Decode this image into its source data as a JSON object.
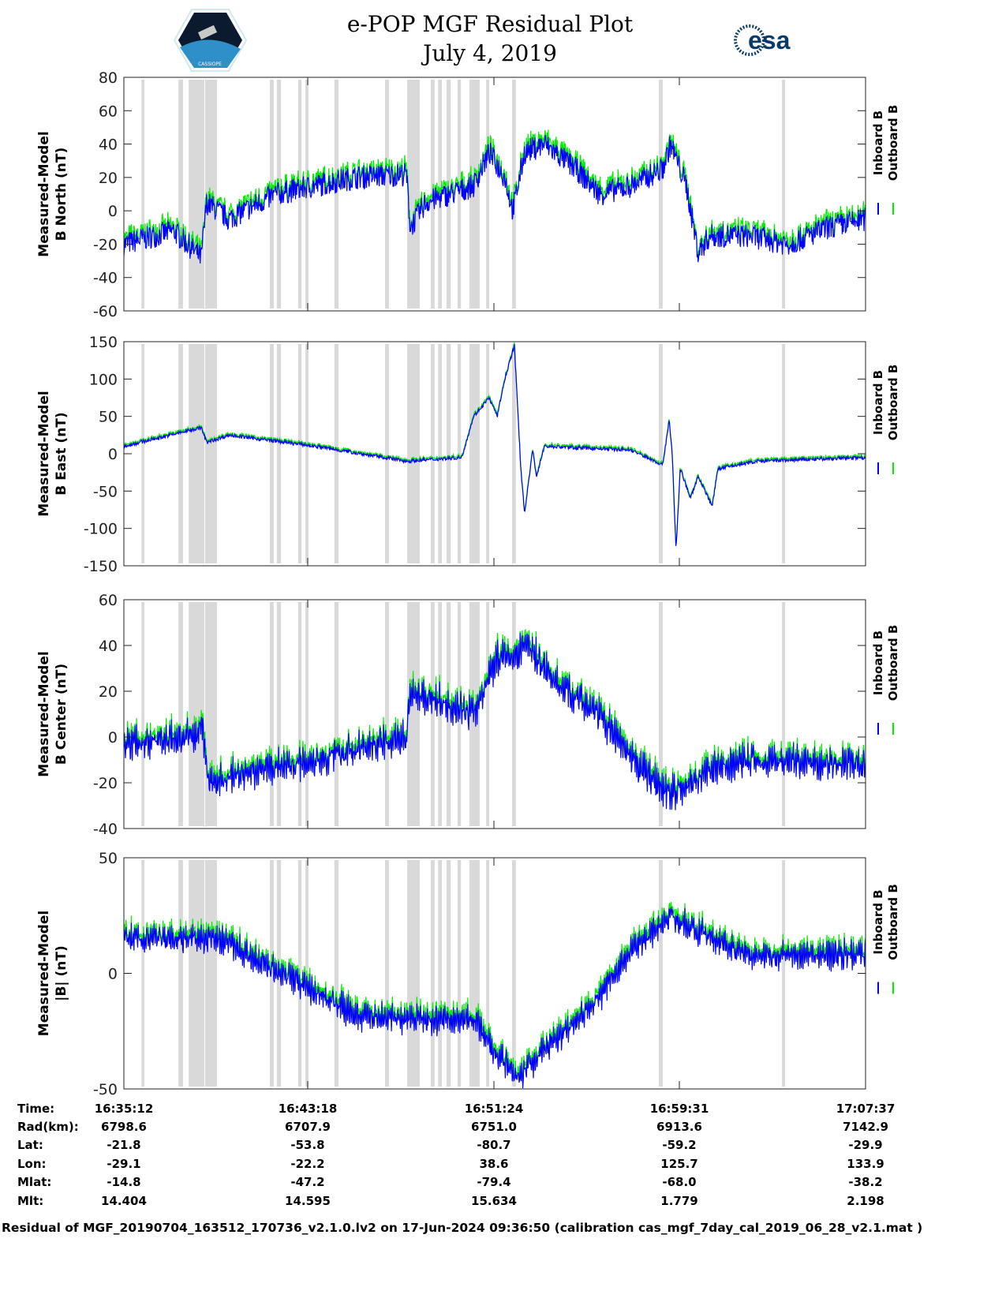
{
  "header": {
    "title": "e-POP MGF Residual Plot",
    "date": "July 4, 2019",
    "left_logo": "CASSIOPE",
    "right_logo": "esa"
  },
  "footer": "Residual of MGF_20190704_163512_170736_v2.1.0.lv2 on 17-Jun-2024 09:36:50 (calibration cas_mgf_7day_cal_2019_06_28_v2.1.mat )",
  "colors": {
    "inboard": "#0000ff",
    "outboard": "#00ee00",
    "gap_band": "#d9d9d9"
  },
  "ephemeris": {
    "rows": [
      {
        "label": "Time:",
        "values": [
          "16:35:12",
          "16:43:18",
          "16:51:24",
          "16:59:31",
          "17:07:37"
        ]
      },
      {
        "label": "Rad(km):",
        "values": [
          "6798.6",
          "6707.9",
          "6751.0",
          "6913.6",
          "7142.9"
        ]
      },
      {
        "label": "Lat:",
        "values": [
          "-21.8",
          "-53.8",
          "-80.7",
          "-59.2",
          "-29.9"
        ]
      },
      {
        "label": "Lon:",
        "values": [
          "-29.1",
          "-22.2",
          "38.6",
          "125.7",
          "133.9"
        ]
      },
      {
        "label": "Mlat:",
        "values": [
          "-14.8",
          "-47.2",
          "-79.4",
          "-68.0",
          "-38.2"
        ]
      },
      {
        "label": "Mlt:",
        "values": [
          "14.404",
          "14.595",
          "15.634",
          "1.779",
          "2.198"
        ]
      }
    ]
  },
  "chart_data": {
    "type": "line",
    "x_unit": "seconds since 16:35:12",
    "xlim": [
      0,
      1945
    ],
    "gap_bands_s": [
      [
        46,
        54
      ],
      [
        143,
        155
      ],
      [
        170,
        211
      ],
      [
        213,
        244
      ],
      [
        383,
        393
      ],
      [
        401,
        412
      ],
      [
        457,
        466
      ],
      [
        476,
        484
      ],
      [
        552,
        563
      ],
      [
        685,
        695
      ],
      [
        743,
        776
      ],
      [
        805,
        815
      ],
      [
        824,
        834
      ],
      [
        846,
        857
      ],
      [
        875,
        884
      ],
      [
        906,
        933
      ],
      [
        950,
        958
      ],
      [
        1018,
        1028
      ],
      [
        1403,
        1413
      ],
      [
        1726,
        1734
      ]
    ],
    "legend": [
      "Inboard B",
      "Outboard B"
    ],
    "panels": [
      {
        "ylabel": [
          "Measured-Model",
          "B North (nT)"
        ],
        "ylim": [
          -60,
          80
        ],
        "yticks": [
          -60,
          -40,
          -20,
          0,
          20,
          40,
          60,
          80
        ],
        "noise": 9,
        "outboard_offset": 3,
        "series_points": [
          [
            0,
            -20
          ],
          [
            130,
            -12
          ],
          [
            203,
            -28
          ],
          [
            217,
            5
          ],
          [
            275,
            -5
          ],
          [
            399,
            10
          ],
          [
            503,
            15
          ],
          [
            606,
            20
          ],
          [
            741,
            22
          ],
          [
            751,
            -10
          ],
          [
            792,
            5
          ],
          [
            917,
            15
          ],
          [
            958,
            35
          ],
          [
            999,
            20
          ],
          [
            1020,
            0
          ],
          [
            1051,
            35
          ],
          [
            1103,
            40
          ],
          [
            1186,
            25
          ],
          [
            1248,
            10
          ],
          [
            1330,
            15
          ],
          [
            1413,
            25
          ],
          [
            1434,
            40
          ],
          [
            1475,
            15
          ],
          [
            1506,
            -25
          ],
          [
            1537,
            -15
          ],
          [
            1641,
            -15
          ],
          [
            1744,
            -20
          ],
          [
            1848,
            -10
          ],
          [
            1945,
            -5
          ]
        ]
      },
      {
        "ylabel": [
          "Measured-Model",
          "B East (nT)"
        ],
        "ylim": [
          -150,
          150
        ],
        "yticks": [
          -150,
          -100,
          -50,
          0,
          50,
          100,
          150
        ],
        "noise": 3,
        "outboard_offset": 2,
        "series_points": [
          [
            0,
            10
          ],
          [
            203,
            35
          ],
          [
            217,
            15
          ],
          [
            275,
            25
          ],
          [
            503,
            10
          ],
          [
            741,
            -10
          ],
          [
            886,
            -5
          ],
          [
            917,
            50
          ],
          [
            958,
            75
          ],
          [
            979,
            50
          ],
          [
            999,
            100
          ],
          [
            1024,
            145
          ],
          [
            1041,
            -20
          ],
          [
            1051,
            -80
          ],
          [
            1072,
            5
          ],
          [
            1082,
            -30
          ],
          [
            1103,
            10
          ],
          [
            1330,
            5
          ],
          [
            1413,
            -15
          ],
          [
            1430,
            45
          ],
          [
            1438,
            0
          ],
          [
            1448,
            -130
          ],
          [
            1459,
            -20
          ],
          [
            1486,
            -60
          ],
          [
            1506,
            -30
          ],
          [
            1543,
            -70
          ],
          [
            1558,
            -20
          ],
          [
            1661,
            -10
          ],
          [
            1945,
            -5
          ]
        ]
      },
      {
        "ylabel": [
          "Measured-Model",
          "B Center (nT)"
        ],
        "ylim": [
          -40,
          60
        ],
        "yticks": [
          -40,
          -20,
          0,
          20,
          40,
          60
        ],
        "noise": 6,
        "outboard_offset": 2,
        "series_points": [
          [
            0,
            -3
          ],
          [
            192,
            0
          ],
          [
            203,
            8
          ],
          [
            223,
            -20
          ],
          [
            337,
            -15
          ],
          [
            503,
            -10
          ],
          [
            741,
            0
          ],
          [
            751,
            20
          ],
          [
            917,
            10
          ],
          [
            979,
            35
          ],
          [
            1030,
            35
          ],
          [
            1051,
            42
          ],
          [
            1124,
            25
          ],
          [
            1248,
            10
          ],
          [
            1330,
            -10
          ],
          [
            1434,
            -25
          ],
          [
            1537,
            -15
          ],
          [
            1641,
            -10
          ],
          [
            1945,
            -12
          ]
        ]
      },
      {
        "ylabel": [
          "Measured-Model",
          "|B| (nT)"
        ],
        "ylim": [
          -50,
          50
        ],
        "yticks": [
          -50,
          0,
          50
        ],
        "noise": 5,
        "outboard_offset": 2,
        "series_points": [
          [
            0,
            15
          ],
          [
            244,
            15
          ],
          [
            358,
            5
          ],
          [
            503,
            -8
          ],
          [
            606,
            -18
          ],
          [
            751,
            -20
          ],
          [
            917,
            -20
          ],
          [
            979,
            -35
          ],
          [
            1030,
            -45
          ],
          [
            1124,
            -30
          ],
          [
            1248,
            -10
          ],
          [
            1330,
            10
          ],
          [
            1434,
            25
          ],
          [
            1537,
            15
          ],
          [
            1641,
            8
          ],
          [
            1945,
            8
          ]
        ]
      }
    ]
  }
}
